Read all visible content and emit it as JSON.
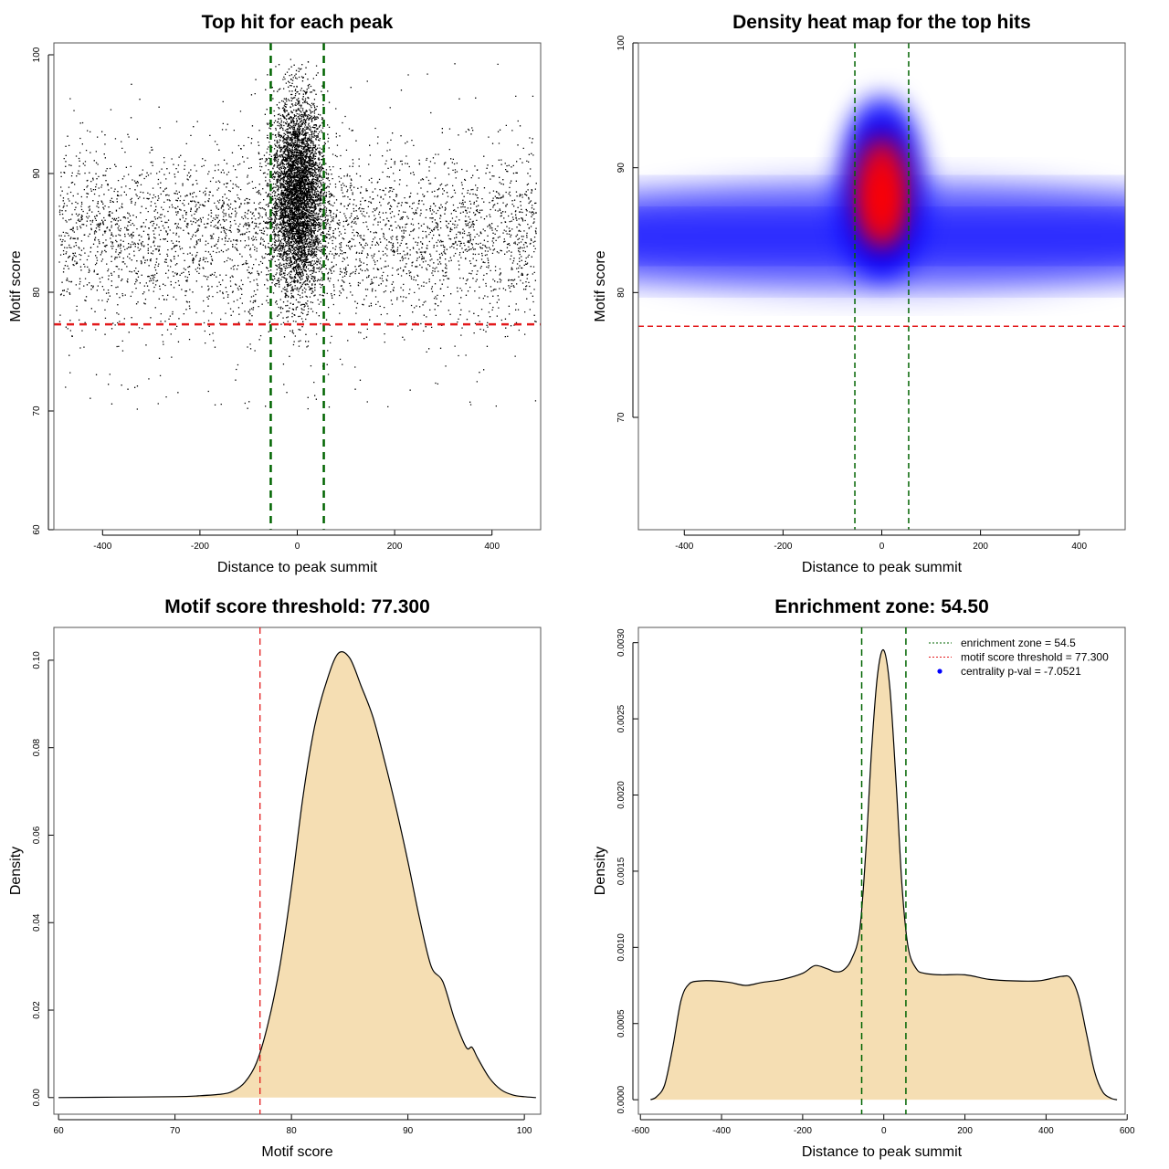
{
  "chart_data": [
    {
      "type": "scatter",
      "title": "Top hit for each peak",
      "xlabel": "Distance to peak summit",
      "ylabel": "Motif score",
      "xlim": [
        -500,
        500
      ],
      "ylim": [
        60,
        101
      ],
      "xticks": [
        -400,
        -200,
        0,
        200,
        400
      ],
      "yticks": [
        60,
        70,
        80,
        90,
        100
      ],
      "point_color": "#000000",
      "description_points": "approx. 28000 points: uniform background centered near score 84 with a dense central column at distance 0 rising to ~99",
      "hlines": [
        {
          "value": 77.3,
          "color": "#e31a1c",
          "style": "dashed"
        }
      ],
      "vlines": [
        {
          "value": -54.5,
          "color": "#006400",
          "style": "dashed"
        },
        {
          "value": 54.5,
          "color": "#006400",
          "style": "dashed"
        }
      ]
    },
    {
      "type": "heatmap",
      "title": "Density heat map for the top hits",
      "xlabel": "Distance to peak summit",
      "ylabel": "Motif score",
      "xlim": [
        -493,
        493
      ],
      "ylim": [
        61,
        100
      ],
      "xticks": [
        -400,
        -200,
        0,
        200,
        400
      ],
      "yticks": [
        70,
        80,
        90,
        100
      ],
      "colormap": [
        "#ffffff",
        "#0000ff",
        "#ff0000"
      ],
      "hlines": [
        {
          "value": 77.3,
          "color": "#e31a1c",
          "style": "dashed"
        }
      ],
      "vlines": [
        {
          "value": -54.5,
          "color": "#006400",
          "style": "dashed"
        },
        {
          "value": 54.5,
          "color": "#006400",
          "style": "dashed"
        }
      ]
    },
    {
      "type": "area",
      "title": "Motif score threshold: 77.300",
      "xlabel": "Motif score",
      "ylabel": "Density",
      "xlim": [
        59.6,
        101.4
      ],
      "ylim": [
        -0.0038,
        0.1075
      ],
      "xticks": [
        60,
        70,
        80,
        90,
        100
      ],
      "yticks": [
        0.0,
        0.02,
        0.04,
        0.06,
        0.08,
        0.1
      ],
      "ytick_labels": [
        "0.00",
        "0.02",
        "0.04",
        "0.06",
        "0.08",
        "0.10"
      ],
      "fill": "#f5deb3",
      "x": [
        60,
        65,
        70,
        72,
        74,
        75,
        76,
        77,
        78,
        79,
        80,
        81,
        82,
        83,
        84,
        85,
        86,
        87,
        88,
        89,
        90,
        91,
        92,
        93,
        94,
        95,
        95.5,
        96,
        97,
        98,
        99,
        100,
        101
      ],
      "y": [
        0.0,
        0.0001,
        0.0002,
        0.0004,
        0.0008,
        0.0015,
        0.0035,
        0.008,
        0.017,
        0.03,
        0.048,
        0.069,
        0.085,
        0.095,
        0.1015,
        0.1005,
        0.094,
        0.087,
        0.077,
        0.066,
        0.054,
        0.041,
        0.03,
        0.0265,
        0.018,
        0.0115,
        0.0115,
        0.009,
        0.0045,
        0.0018,
        0.0006,
        0.0002,
        0.0
      ]
    },
    {
      "type": "area",
      "title": "Enrichment zone: 54.50",
      "xlabel": "Distance to peak summit",
      "ylabel": "Density",
      "xlim": [
        -605,
        595
      ],
      "ylim": [
        -9.5e-05,
        0.0031
      ],
      "xticks": [
        -600,
        -400,
        -200,
        0,
        200,
        400,
        600
      ],
      "yticks": [
        0.0,
        0.0005,
        0.001,
        0.0015,
        0.002,
        0.0025,
        0.003
      ],
      "ytick_labels": [
        "0.0000",
        "0.0005",
        "0.0010",
        "0.0015",
        "0.0020",
        "0.0025",
        "0.0030"
      ],
      "fill": "#f5deb3",
      "x": [
        -575,
        -560,
        -540,
        -520,
        -500,
        -480,
        -450,
        -420,
        -380,
        -340,
        -300,
        -250,
        -200,
        -170,
        -140,
        -120,
        -100,
        -80,
        -60,
        -45,
        -30,
        -15,
        0,
        15,
        30,
        45,
        60,
        80,
        100,
        140,
        200,
        260,
        320,
        380,
        420,
        440,
        460,
        480,
        500,
        520,
        540,
        560,
        575
      ],
      "y": [
        0.0,
        2e-05,
        0.0001,
        0.00035,
        0.00065,
        0.00076,
        0.00078,
        0.00078,
        0.00077,
        0.00075,
        0.00077,
        0.00079,
        0.00083,
        0.00088,
        0.00086,
        0.00084,
        0.00085,
        0.00092,
        0.0011,
        0.0016,
        0.0023,
        0.0028,
        0.00295,
        0.0027,
        0.0021,
        0.0014,
        0.001,
        0.00086,
        0.00083,
        0.00082,
        0.00082,
        0.00079,
        0.00078,
        0.00078,
        0.0008,
        0.00081,
        0.0008,
        0.00068,
        0.00043,
        0.00018,
        5e-05,
        1e-05,
        0.0
      ],
      "vlines": [
        {
          "value": -54.5,
          "color": "#006400",
          "style": "dashed"
        },
        {
          "value": 54.5,
          "color": "#006400",
          "style": "dashed"
        }
      ],
      "legend": {
        "position": "top-right",
        "entries": [
          {
            "label": "enrichment zone = 54.5",
            "color": "#006400",
            "marker": "dotted-line"
          },
          {
            "label": "motif score threshold = 77.300",
            "color": "#e31a1c",
            "marker": "dotted-line"
          },
          {
            "label": "centrality p-val = -7.0521",
            "color": "#0000ff",
            "marker": "point"
          }
        ]
      }
    }
  ]
}
